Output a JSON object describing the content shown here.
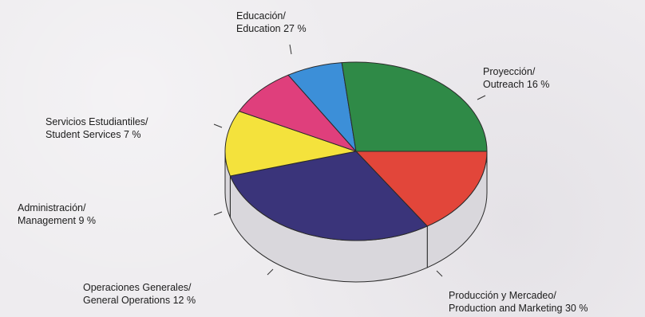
{
  "chart_data": {
    "type": "pie",
    "style": "3d",
    "unit": "%",
    "slices": [
      {
        "name": "Proyección/",
        "name_en": "Outreach",
        "value": 16,
        "color": "#e2463a"
      },
      {
        "name": "Producción y Mercadeo/",
        "name_en": "Production and Marketing",
        "value": 30,
        "color": "#3a347a"
      },
      {
        "name": "Operaciones Generales/",
        "name_en": "General Operations",
        "value": 12,
        "color": "#f4e23c"
      },
      {
        "name": "Administración/",
        "name_en": "Management",
        "value": 9,
        "color": "#df3f7c"
      },
      {
        "name": "Servicios Estudiantiles/",
        "name_en": "Student Services",
        "value": 7,
        "color": "#3c8fd8"
      },
      {
        "name": "Educación/",
        "name_en": "Education",
        "value": 27,
        "color": "#2f8a47"
      }
    ],
    "side_color": "#d9d7dc",
    "title": "",
    "legend": "none"
  }
}
